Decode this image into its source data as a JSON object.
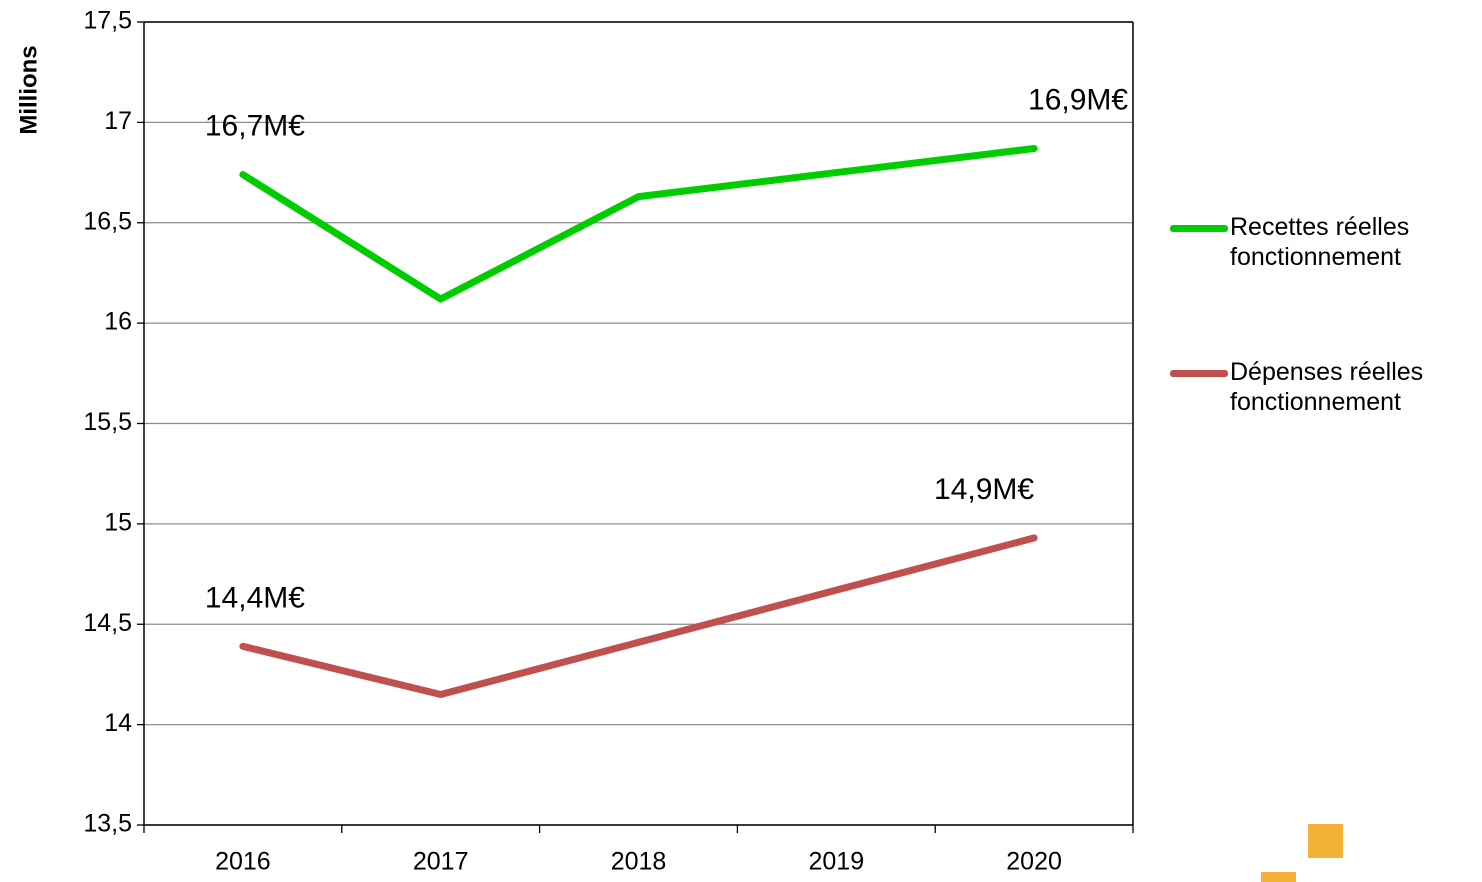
{
  "chart_data": {
    "type": "line",
    "y_axis_label": "Millions",
    "categories": [
      "2016",
      "2017",
      "2018",
      "2019",
      "2020"
    ],
    "series": [
      {
        "name": "Recettes réelles fonctionnement",
        "color": "#00cc00",
        "values": [
          16.74,
          16.12,
          16.63,
          16.75,
          16.87
        ],
        "value_labels": [
          "16,7M€",
          null,
          null,
          null,
          "16,9M€"
        ]
      },
      {
        "name": "Dépenses réelles fonctionnement",
        "color": "#c0504d",
        "values": [
          14.39,
          14.15,
          14.41,
          14.67,
          14.93
        ],
        "value_labels": [
          "14,4M€",
          null,
          null,
          null,
          "14,9M€"
        ]
      }
    ],
    "ylim": [
      13.5,
      17.5
    ],
    "yticks": [
      {
        "value": 13.5,
        "label": "13,5"
      },
      14,
      {
        "value": 14.5,
        "label": "14,5"
      },
      15,
      {
        "value": 15.5,
        "label": "15,5"
      },
      16,
      {
        "value": 16.5,
        "label": "16,5"
      },
      17,
      {
        "value": 17.5,
        "label": "17,5"
      }
    ],
    "grid": true,
    "legend": "right"
  }
}
